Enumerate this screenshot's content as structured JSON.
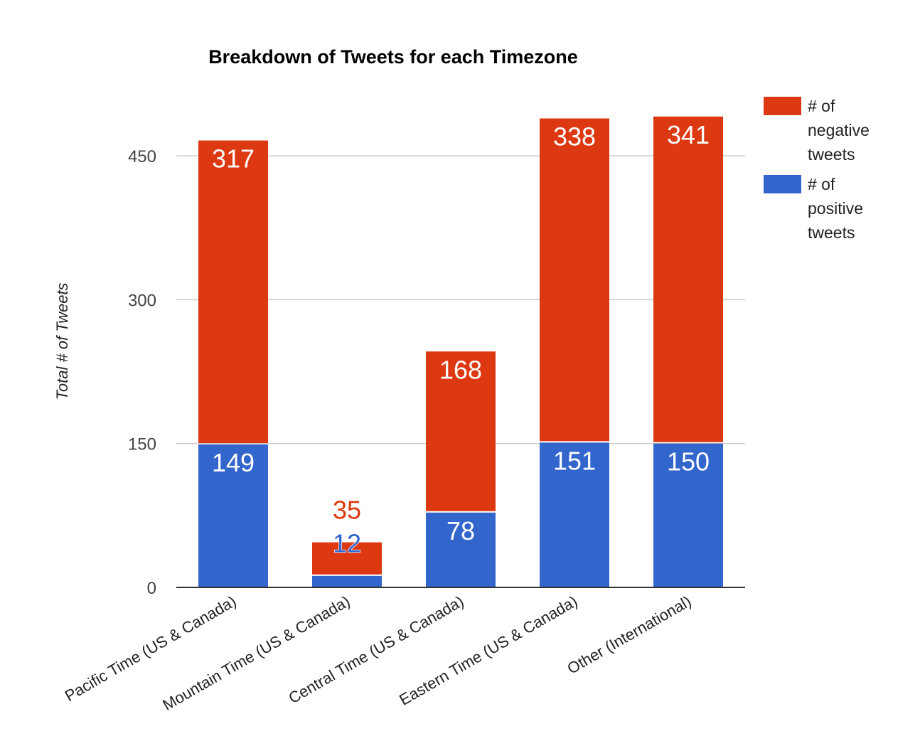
{
  "chart_data": {
    "type": "bar",
    "stacked": true,
    "title": "Breakdown of Tweets for each Timezone",
    "xlabel": "",
    "ylabel": "Total # of Tweets",
    "ylim": [
      0,
      525
    ],
    "yticks": [
      "0",
      "150",
      "300",
      "450"
    ],
    "grid": true,
    "legend_position": "right",
    "categories": [
      "Pacific Time (US & Canada)",
      "Mountain Time (US & Canada)",
      "Central Time (US & Canada)",
      "Eastern Time (US & Canada)",
      "Other (International)"
    ],
    "series": [
      {
        "name": "# of positive tweets",
        "color": "#3366cc",
        "values": [
          149,
          12,
          78,
          151,
          150
        ]
      },
      {
        "name": "# of negative tweets",
        "color": "#dc3912",
        "values": [
          317,
          35,
          168,
          338,
          341
        ]
      }
    ],
    "legend_lines": [
      [
        "# of",
        "negative",
        "tweets"
      ],
      [
        "# of",
        "positive",
        "tweets"
      ]
    ]
  }
}
